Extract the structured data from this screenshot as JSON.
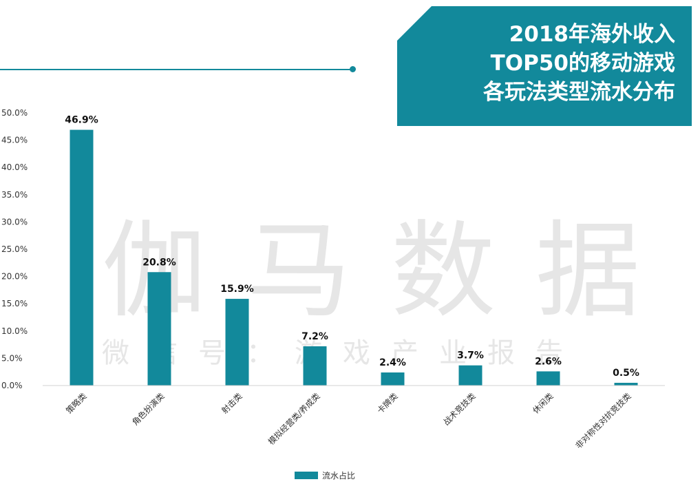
{
  "title": "2018年海外收入\nTOP50的移动游戏\n各玩法类型流水分布",
  "watermark": {
    "main": "伽马数据",
    "sub": "微信号：游戏产业报告"
  },
  "colors": {
    "accent": "#12899b",
    "title_bg": "#12899b",
    "bar": "#12899b",
    "axis": "#d0d0d0"
  },
  "chart_data": {
    "type": "bar",
    "categories": [
      "策略类",
      "角色扮演类",
      "射击类",
      "模拟经营类/养成类",
      "卡牌类",
      "战术竞技类",
      "休闲类",
      "非对称性对抗竞技类"
    ],
    "series": [
      {
        "name": "流水占比",
        "values": [
          46.9,
          20.8,
          15.9,
          7.2,
          2.4,
          3.7,
          2.6,
          0.5
        ]
      }
    ],
    "data_labels": [
      "46.9%",
      "20.8%",
      "15.9%",
      "7.2%",
      "2.4%",
      "3.7%",
      "2.6%",
      "0.5%"
    ],
    "yticks": [
      "0.0%",
      "5.0%",
      "10.0%",
      "15.0%",
      "20.0%",
      "25.0%",
      "30.0%",
      "35.0%",
      "40.0%",
      "45.0%",
      "50.0%"
    ],
    "ylim": [
      0,
      50
    ],
    "grid": false,
    "legend": "bottom"
  }
}
